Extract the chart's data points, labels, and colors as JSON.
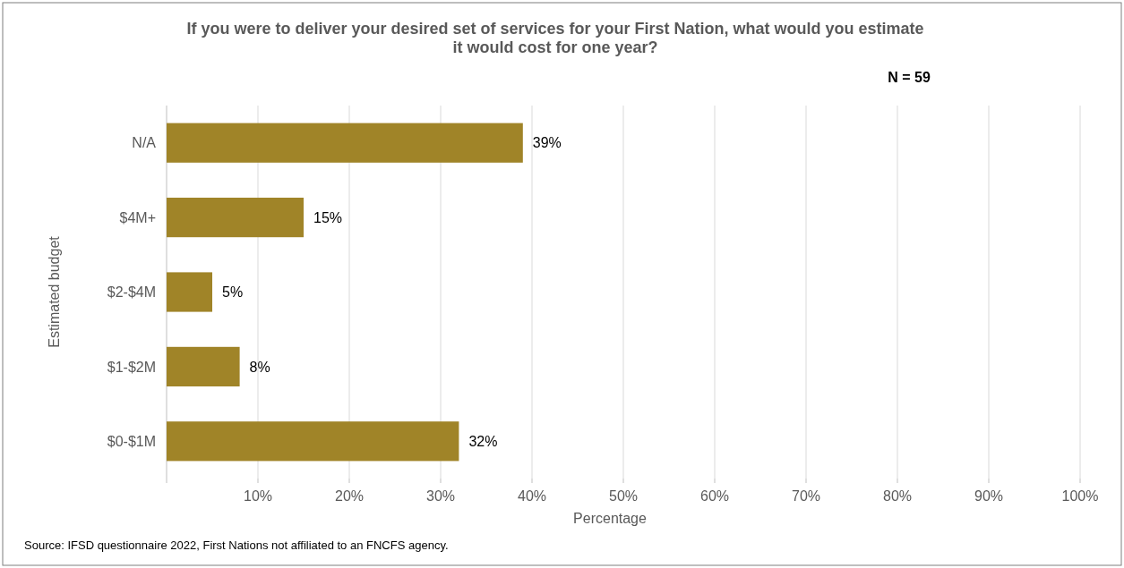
{
  "chart_data": {
    "type": "bar",
    "orientation": "horizontal",
    "title": "If you were to deliver your desired set of services for your First Nation, what would you estimate it would cost for one year?",
    "xlabel": "Percentage",
    "ylabel": "Estimated budget",
    "categories": [
      "N/A",
      "$4M+",
      "$2-$4M",
      "$1-$2M",
      "$0-$1M"
    ],
    "values": [
      39,
      15,
      5,
      8,
      32
    ],
    "value_labels": [
      "39%",
      "15%",
      "5%",
      "8%",
      "32%"
    ],
    "color": "#a08428",
    "xlim": [
      0,
      100
    ],
    "xticks": [
      {
        "value": 0,
        "label": null
      },
      {
        "value": 10,
        "label": "10%"
      },
      {
        "value": 20,
        "label": "20%"
      },
      {
        "value": 30,
        "label": "30%"
      },
      {
        "value": 40,
        "label": "40%"
      },
      {
        "value": 50,
        "label": "50%"
      },
      {
        "value": 60,
        "label": "60%"
      },
      {
        "value": 70,
        "label": "70%"
      },
      {
        "value": 80,
        "label": "80%"
      },
      {
        "value": 90,
        "label": "90%"
      },
      {
        "value": 100,
        "label": "100%"
      }
    ],
    "grid": "x",
    "annotations": [
      "N = 59",
      "Source: IFSD questionnaire 2022, First Nations not affiliated to an FNCFS agency."
    ]
  }
}
